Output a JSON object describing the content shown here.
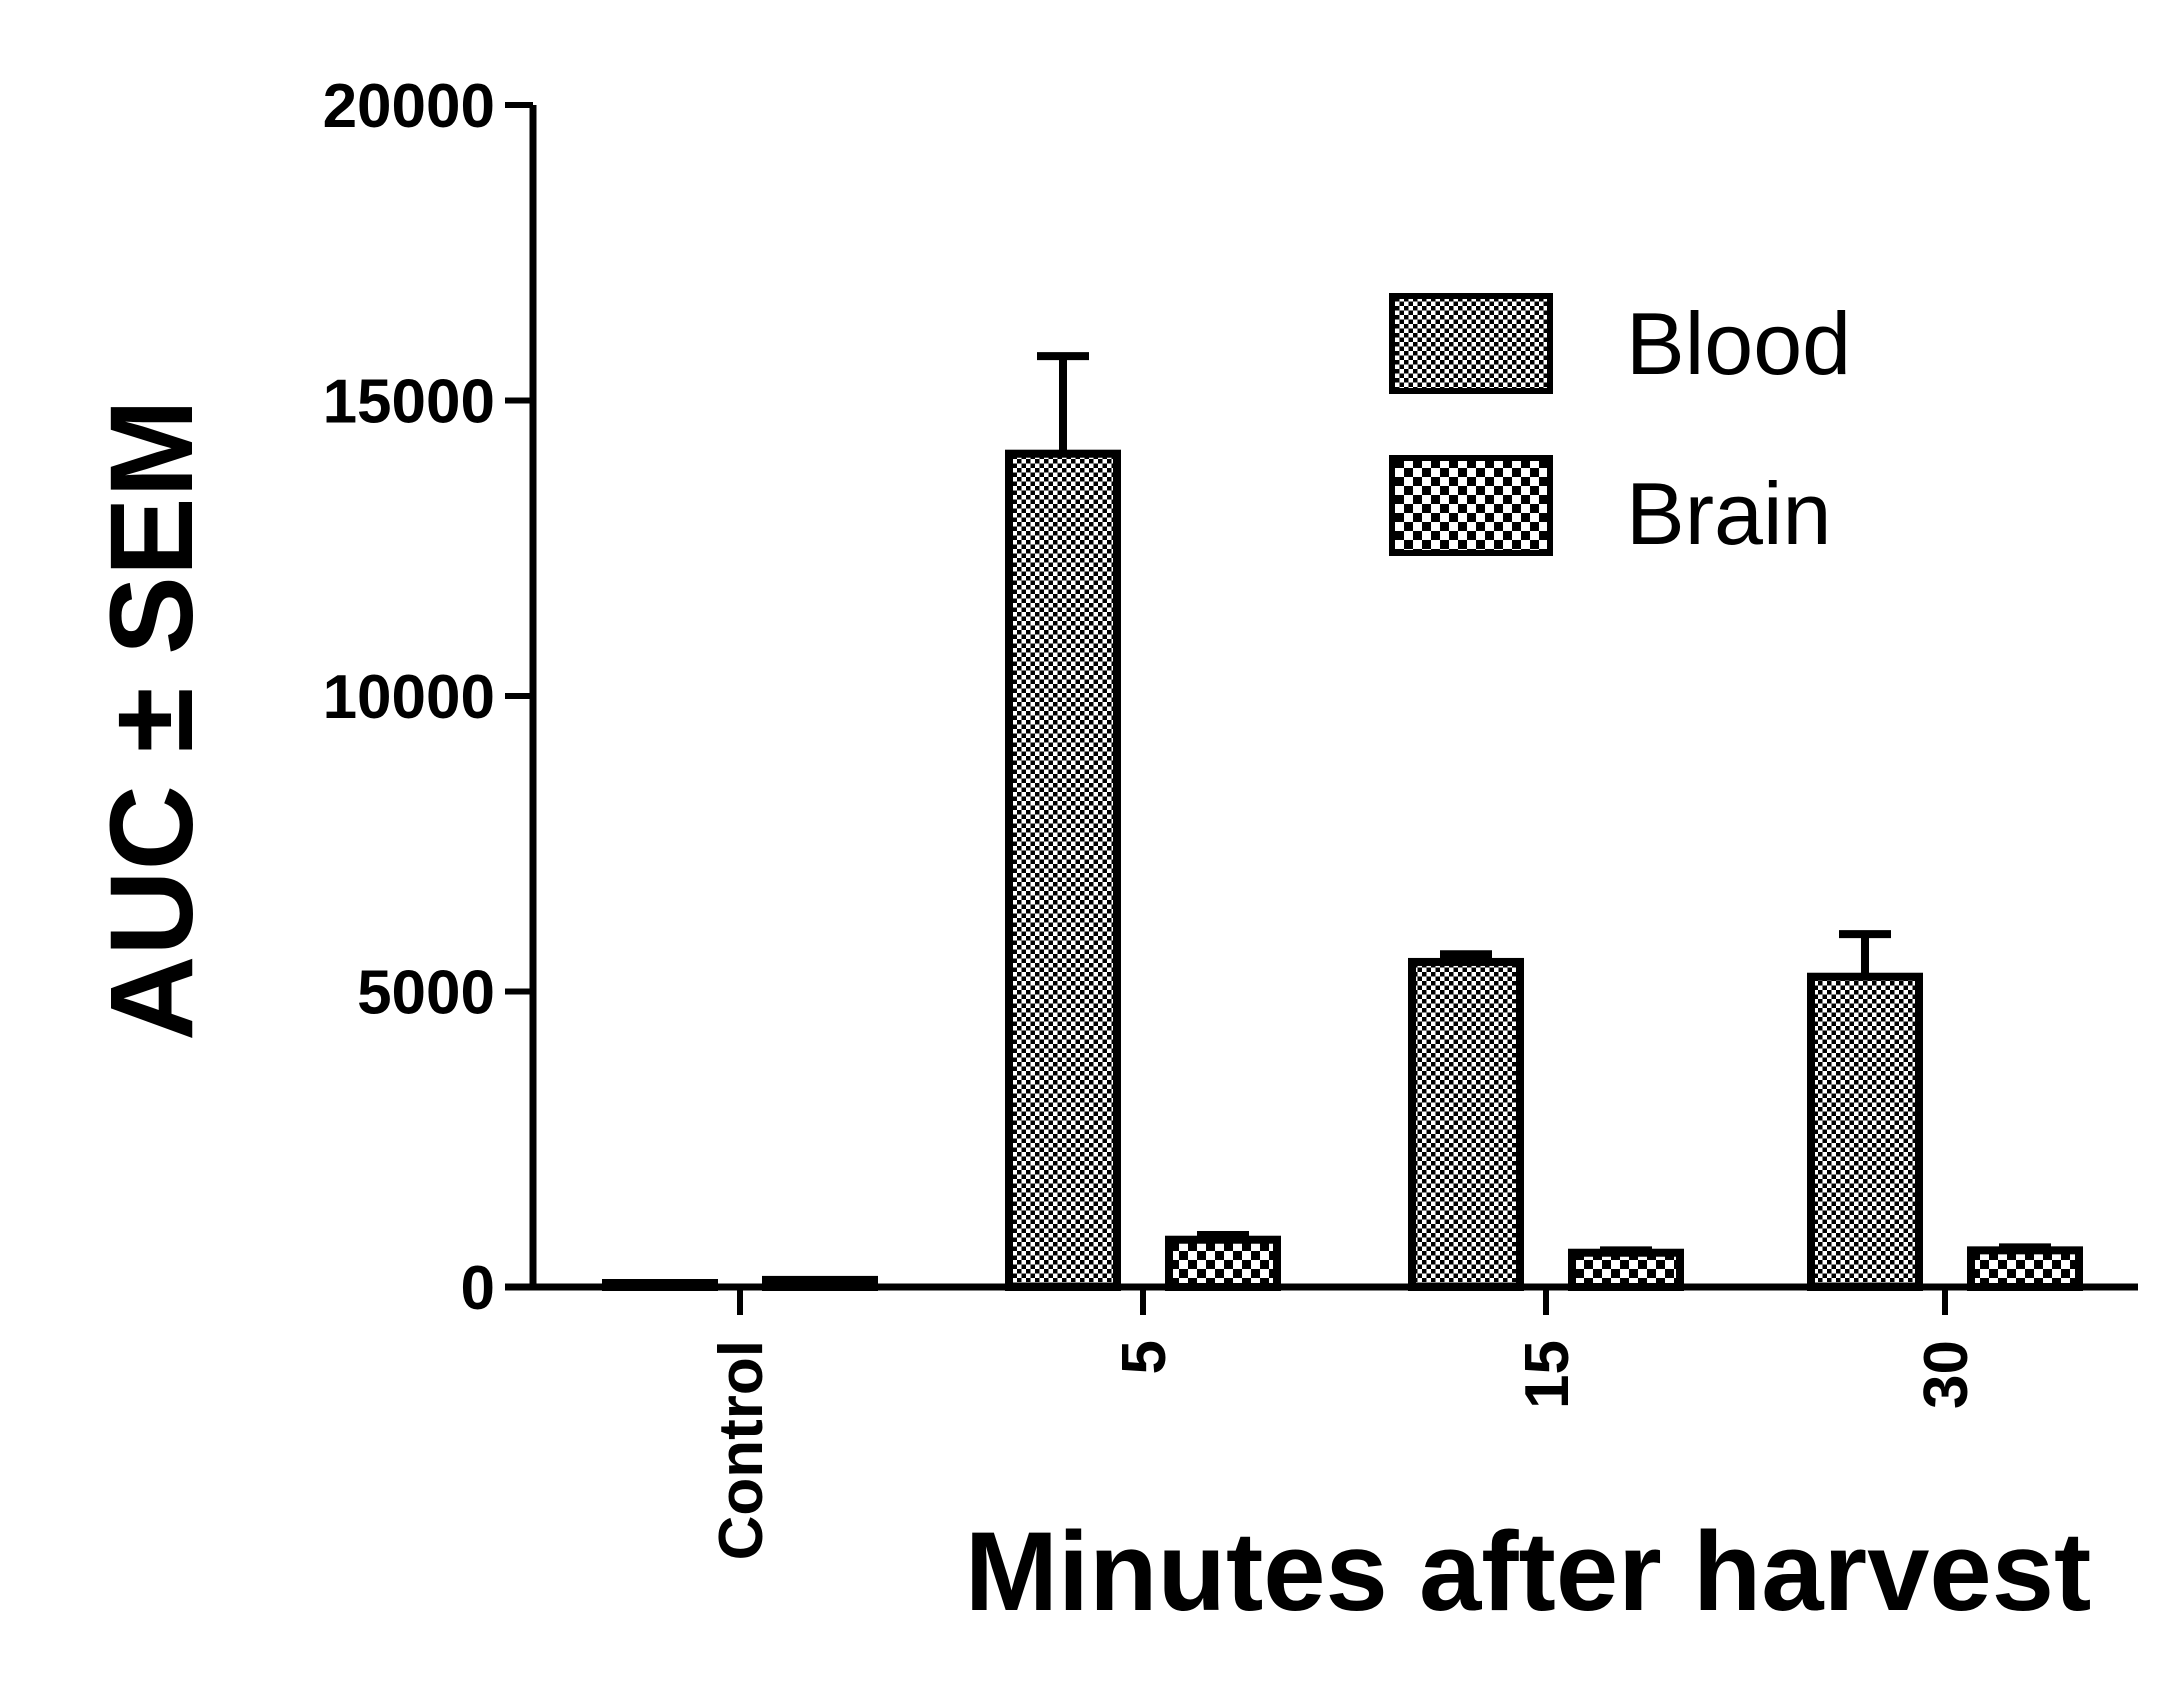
{
  "chart_data": {
    "type": "bar",
    "categories": [
      "Control",
      "5",
      "15",
      "30"
    ],
    "series": [
      {
        "name": "Blood",
        "values": [
          40,
          14100,
          5500,
          5250
        ],
        "sem": [
          0,
          1650,
          130,
          720
        ]
      },
      {
        "name": "Brain",
        "values": [
          120,
          800,
          580,
          620
        ],
        "sem": [
          0,
          80,
          40,
          50
        ]
      }
    ],
    "xlabel": "Minutes after harvest",
    "ylabel": "AUC ± SEM",
    "ylim": [
      0,
      20000
    ],
    "yticks": [
      0,
      5000,
      10000,
      15000,
      20000
    ],
    "legend_placement": "top-right",
    "colors": {
      "bar_fill": "#ffffff",
      "pattern": "#000000",
      "axis": "#000000"
    }
  }
}
